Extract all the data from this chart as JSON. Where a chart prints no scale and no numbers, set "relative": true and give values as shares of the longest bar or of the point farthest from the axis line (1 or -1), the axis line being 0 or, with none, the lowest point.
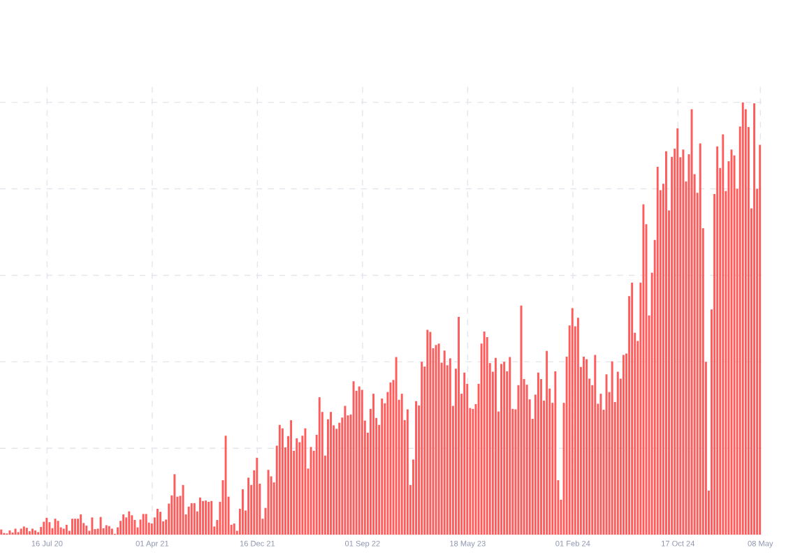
{
  "chart_data": {
    "type": "bar",
    "relative": true,
    "color": "#ff5b5b",
    "grid": true,
    "legend": false,
    "xlim": [
      "2020-03-22",
      "2025-05-11"
    ],
    "xticks": [
      {
        "value": "2020-07-16",
        "label": "16 Jul 20"
      },
      {
        "value": "2021-04-01",
        "label": "01 Apr 21"
      },
      {
        "value": "2021-12-16",
        "label": "16 Dec 21"
      },
      {
        "value": "2022-09-01",
        "label": "01 Sep 22"
      },
      {
        "value": "2023-05-18",
        "label": "18 May 23"
      },
      {
        "value": "2024-02-01",
        "label": "01 Feb 24"
      },
      {
        "value": "2024-10-17",
        "label": "17 Oct 24"
      },
      {
        "value": "2025-05-08",
        "label": "08 May"
      }
    ],
    "x": [
      "2020-03-25",
      "2020-04-01",
      "2020-04-08",
      "2020-04-15",
      "2020-04-22",
      "2020-04-29",
      "2020-05-06",
      "2020-05-13",
      "2020-05-20",
      "2020-05-27",
      "2020-06-03",
      "2020-06-10",
      "2020-06-17",
      "2020-06-24",
      "2020-07-01",
      "2020-07-08",
      "2020-07-15",
      "2020-07-22",
      "2020-07-29",
      "2020-08-05",
      "2020-08-12",
      "2020-08-19",
      "2020-08-26",
      "2020-09-02",
      "2020-09-09",
      "2020-09-16",
      "2020-09-23",
      "2020-09-30",
      "2020-10-07",
      "2020-10-14",
      "2020-10-21",
      "2020-10-28",
      "2020-11-04",
      "2020-11-11",
      "2020-11-18",
      "2020-11-25",
      "2020-12-02",
      "2020-12-09",
      "2020-12-16",
      "2020-12-23",
      "2020-12-30",
      "2021-01-06",
      "2021-01-13",
      "2021-01-20",
      "2021-01-27",
      "2021-02-03",
      "2021-02-10",
      "2021-02-17",
      "2021-02-24",
      "2021-03-03",
      "2021-03-10",
      "2021-03-17",
      "2021-03-24",
      "2021-03-31",
      "2021-04-07",
      "2021-04-14",
      "2021-04-21",
      "2021-04-28",
      "2021-05-05",
      "2021-05-12",
      "2021-05-19",
      "2021-05-26",
      "2021-06-02",
      "2021-06-09",
      "2021-06-16",
      "2021-06-23",
      "2021-06-30",
      "2021-07-07",
      "2021-07-14",
      "2021-07-21",
      "2021-07-28",
      "2021-08-04",
      "2021-08-11",
      "2021-08-18",
      "2021-08-25",
      "2021-09-01",
      "2021-09-08",
      "2021-09-15",
      "2021-09-22",
      "2021-09-29",
      "2021-10-06",
      "2021-10-13",
      "2021-10-20",
      "2021-10-27",
      "2021-11-03",
      "2021-11-10",
      "2021-11-17",
      "2021-11-24",
      "2021-12-01",
      "2021-12-08",
      "2021-12-15",
      "2021-12-22",
      "2021-12-29",
      "2022-01-05",
      "2022-01-12",
      "2022-01-19",
      "2022-01-26",
      "2022-02-02",
      "2022-02-09",
      "2022-02-16",
      "2022-02-23",
      "2022-03-02",
      "2022-03-09",
      "2022-03-16",
      "2022-03-23",
      "2022-03-30",
      "2022-04-06",
      "2022-04-13",
      "2022-04-20",
      "2022-04-27",
      "2022-05-04",
      "2022-05-11",
      "2022-05-18",
      "2022-05-25",
      "2022-06-01",
      "2022-06-08",
      "2022-06-15",
      "2022-06-22",
      "2022-06-29",
      "2022-07-06",
      "2022-07-13",
      "2022-07-20",
      "2022-07-27",
      "2022-08-03",
      "2022-08-10",
      "2022-08-17",
      "2022-08-24",
      "2022-08-31",
      "2022-09-07",
      "2022-09-14",
      "2022-09-21",
      "2022-09-28",
      "2022-10-05",
      "2022-10-12",
      "2022-10-19",
      "2022-10-26",
      "2022-11-02",
      "2022-11-09",
      "2022-11-16",
      "2022-11-23",
      "2022-11-30",
      "2022-12-07",
      "2022-12-14",
      "2022-12-21",
      "2022-12-28",
      "2023-01-04",
      "2023-01-11",
      "2023-01-18",
      "2023-01-25",
      "2023-02-01",
      "2023-02-08",
      "2023-02-15",
      "2023-02-22",
      "2023-03-01",
      "2023-03-08",
      "2023-03-15",
      "2023-03-22",
      "2023-03-29",
      "2023-04-05",
      "2023-04-12",
      "2023-04-19",
      "2023-04-26",
      "2023-05-03",
      "2023-05-10",
      "2023-05-17",
      "2023-05-24",
      "2023-05-31",
      "2023-06-07",
      "2023-06-14",
      "2023-06-21",
      "2023-06-28",
      "2023-07-05",
      "2023-07-12",
      "2023-07-19",
      "2023-07-26",
      "2023-08-02",
      "2023-08-09",
      "2023-08-16",
      "2023-08-23",
      "2023-08-30",
      "2023-09-06",
      "2023-09-13",
      "2023-09-20",
      "2023-09-27",
      "2023-10-04",
      "2023-10-11",
      "2023-10-18",
      "2023-10-25",
      "2023-11-01",
      "2023-11-08",
      "2023-11-15",
      "2023-11-22",
      "2023-11-29",
      "2023-12-06",
      "2023-12-13",
      "2023-12-20",
      "2023-12-27",
      "2024-01-03",
      "2024-01-10",
      "2024-01-17",
      "2024-01-24",
      "2024-01-31",
      "2024-02-07",
      "2024-02-14",
      "2024-02-21",
      "2024-02-28",
      "2024-03-06",
      "2024-03-13",
      "2024-03-20",
      "2024-03-27",
      "2024-04-03",
      "2024-04-10",
      "2024-04-17",
      "2024-04-24",
      "2024-05-01",
      "2024-05-08",
      "2024-05-15",
      "2024-05-22",
      "2024-05-29",
      "2024-06-05",
      "2024-06-12",
      "2024-06-19",
      "2024-06-26",
      "2024-07-03",
      "2024-07-10",
      "2024-07-17",
      "2024-07-24",
      "2024-07-31",
      "2024-08-07",
      "2024-08-14",
      "2024-08-21",
      "2024-08-28",
      "2024-09-04",
      "2024-09-11",
      "2024-09-18",
      "2024-09-25",
      "2024-10-02",
      "2024-10-09",
      "2024-10-16",
      "2024-10-23",
      "2024-10-30",
      "2024-11-06",
      "2024-11-13",
      "2024-11-20",
      "2024-11-27",
      "2024-12-04",
      "2024-12-11",
      "2024-12-18",
      "2024-12-25",
      "2025-01-01",
      "2025-01-08",
      "2025-01-15",
      "2025-01-22",
      "2025-01-29",
      "2025-02-05",
      "2025-02-12",
      "2025-02-19",
      "2025-02-26",
      "2025-03-05",
      "2025-03-12",
      "2025-03-19",
      "2025-03-26",
      "2025-04-02",
      "2025-04-09",
      "2025-04-16",
      "2025-04-23",
      "2025-04-30",
      "2025-05-07"
    ],
    "values": [
      0.012,
      0.004,
      0.003,
      0.01,
      0.005,
      0.014,
      0.006,
      0.014,
      0.019,
      0.016,
      0.008,
      0.014,
      0.01,
      0.006,
      0.018,
      0.03,
      0.039,
      0.029,
      0.015,
      0.037,
      0.032,
      0.017,
      0.014,
      0.023,
      0.009,
      0.037,
      0.037,
      0.037,
      0.047,
      0.027,
      0.021,
      0.009,
      0.04,
      0.013,
      0.014,
      0.041,
      0.015,
      0.022,
      0.02,
      0.014,
      0.002,
      0.017,
      0.032,
      0.047,
      0.04,
      0.054,
      0.045,
      0.034,
      0.017,
      0.035,
      0.048,
      0.048,
      0.028,
      0.026,
      0.04,
      0.06,
      0.053,
      0.031,
      0.035,
      0.072,
      0.091,
      0.14,
      0.088,
      0.09,
      0.115,
      0.047,
      0.065,
      0.073,
      0.073,
      0.054,
      0.086,
      0.078,
      0.079,
      0.076,
      0.078,
      0.019,
      0.034,
      0.076,
      0.126,
      0.229,
      0.088,
      0.023,
      0.026,
      0.009,
      0.06,
      0.105,
      0.056,
      0.132,
      0.115,
      0.149,
      0.178,
      0.118,
      0.037,
      0.062,
      0.15,
      0.135,
      0.121,
      0.206,
      0.254,
      0.246,
      0.202,
      0.228,
      0.265,
      0.194,
      0.223,
      0.214,
      0.229,
      0.246,
      0.153,
      0.203,
      0.194,
      0.231,
      0.318,
      0.284,
      0.183,
      0.267,
      0.284,
      0.253,
      0.245,
      0.259,
      0.271,
      0.298,
      0.276,
      0.278,
      0.355,
      0.333,
      0.343,
      0.335,
      0.264,
      0.236,
      0.291,
      0.326,
      0.27,
      0.254,
      0.315,
      0.304,
      0.33,
      0.352,
      0.358,
      0.411,
      0.312,
      0.326,
      0.265,
      0.29,
      0.115,
      0.174,
      0.309,
      0.299,
      0.4,
      0.389,
      0.474,
      0.469,
      0.431,
      0.439,
      0.442,
      0.398,
      0.426,
      0.392,
      0.408,
      0.298,
      0.384,
      0.504,
      0.326,
      0.375,
      0.349,
      0.293,
      0.291,
      0.302,
      0.349,
      0.442,
      0.47,
      0.457,
      0.397,
      0.377,
      0.409,
      0.285,
      0.395,
      0.4,
      0.378,
      0.411,
      0.291,
      0.29,
      0.346,
      0.53,
      0.36,
      0.347,
      0.313,
      0.268,
      0.324,
      0.375,
      0.36,
      0.31,
      0.425,
      0.338,
      0.305,
      0.378,
      0.126,
      0.081,
      0.305,
      0.412,
      0.484,
      0.524,
      0.482,
      0.502,
      0.388,
      0.412,
      0.406,
      0.361,
      0.346,
      0.416,
      0.303,
      0.326,
      0.289,
      0.371,
      0.33,
      0.401,
      0.307,
      0.377,
      0.361,
      0.416,
      0.419,
      0.552,
      0.583,
      0.467,
      0.448,
      0.583,
      0.764,
      0.718,
      0.507,
      0.606,
      0.682,
      0.851,
      0.797,
      0.812,
      0.887,
      0.75,
      0.874,
      0.893,
      0.94,
      0.873,
      0.891,
      0.817,
      0.88,
      0.984,
      0.834,
      0.791,
      0.905,
      0.709,
      0.4,
      0.102,
      0.521,
      0.788,
      0.898,
      0.848,
      0.926,
      0.795,
      0.864,
      0.891,
      0.877,
      0.8,
      0.944,
      1.0,
      0.984,
      0.943,
      0.755,
      0.998,
      0.8,
      0.902
    ]
  }
}
